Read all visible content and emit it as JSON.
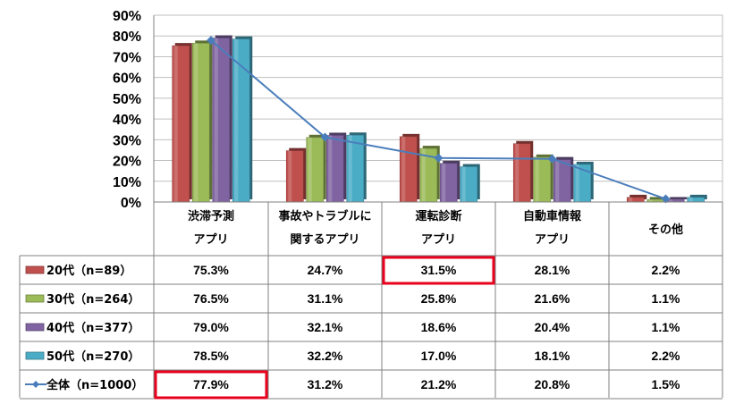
{
  "chart_data": {
    "type": "bar",
    "categories": [
      [
        "渋滞予測",
        "アプリ"
      ],
      [
        "事故やトラブルに",
        "関するアプリ"
      ],
      [
        "運転診断",
        "アプリ"
      ],
      [
        "自動車情報",
        "アプリ"
      ],
      [
        "その他"
      ]
    ],
    "yticks": [
      "0%",
      "10%",
      "20%",
      "30%",
      "40%",
      "50%",
      "60%",
      "70%",
      "80%",
      "90%"
    ],
    "ylim": [
      0,
      90
    ],
    "grid": true,
    "series": [
      {
        "name": "20代（n=89）",
        "kind": "bar",
        "color": "#c0504d",
        "values": [
          75.3,
          24.7,
          31.5,
          28.1,
          2.2
        ],
        "labels": [
          "75.3%",
          "24.7%",
          "31.5%",
          "28.1%",
          "2.2%"
        ]
      },
      {
        "name": "30代（n=264）",
        "kind": "bar",
        "color": "#9bbb59",
        "values": [
          76.5,
          31.1,
          25.8,
          21.6,
          1.1
        ],
        "labels": [
          "76.5%",
          "31.1%",
          "25.8%",
          "21.6%",
          "1.1%"
        ]
      },
      {
        "name": "40代（n=377）",
        "kind": "bar",
        "color": "#8064a2",
        "values": [
          79.0,
          32.1,
          18.6,
          20.4,
          1.1
        ],
        "labels": [
          "79.0%",
          "32.1%",
          "18.6%",
          "20.4%",
          "1.1%"
        ]
      },
      {
        "name": "50代（n=270）",
        "kind": "bar",
        "color": "#4bacc6",
        "values": [
          78.5,
          32.2,
          17.0,
          18.1,
          2.2
        ],
        "labels": [
          "78.5%",
          "32.2%",
          "17.0%",
          "18.1%",
          "2.2%"
        ]
      },
      {
        "name": "全体（n=1000）",
        "kind": "line",
        "color": "#4a7ebb",
        "values": [
          77.9,
          31.2,
          21.2,
          20.8,
          1.5
        ],
        "labels": [
          "77.9%",
          "31.2%",
          "21.2%",
          "20.8%",
          "1.5%"
        ]
      }
    ],
    "highlights": [
      {
        "series": 0,
        "category": 2,
        "color": "#e8001c"
      },
      {
        "series": 4,
        "category": 0,
        "color": "#e8001c"
      }
    ]
  }
}
